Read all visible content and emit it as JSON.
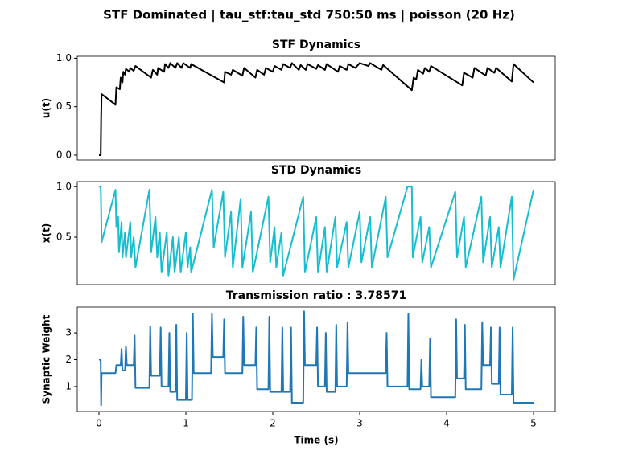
{
  "title": "STF Dominated | tau_stf:tau_std 750:50 ms | poisson (20 Hz)",
  "chart_data": [
    {
      "type": "line",
      "title": "STF Dynamics",
      "ylabel": "u(t)",
      "xlim": [
        -0.25,
        5.25
      ],
      "ylim": [
        -0.05,
        1.02
      ],
      "yticks": [
        {
          "value": 0,
          "label": "0.0"
        },
        0.5,
        {
          "value": 1,
          "label": "1.0"
        }
      ],
      "series": [
        {
          "color": "#000000",
          "x": [
            0,
            0.02,
            0.025,
            0.03,
            0.19,
            0.2,
            0.24,
            0.25,
            0.27,
            0.28,
            0.3,
            0.31,
            0.35,
            0.36,
            0.4,
            0.42,
            0.6,
            0.62,
            0.67,
            0.68,
            0.75,
            0.76,
            0.8,
            0.82,
            0.88,
            0.9,
            0.95,
            0.97,
            1.05,
            1.06,
            1.44,
            1.45,
            1.52,
            1.54,
            1.65,
            1.67,
            1.8,
            1.82,
            1.9,
            1.92,
            2.0,
            2.02,
            2.1,
            2.12,
            2.2,
            2.22,
            2.3,
            2.32,
            2.38,
            2.4,
            2.5,
            2.52,
            2.6,
            2.62,
            2.75,
            2.77,
            2.85,
            2.87,
            2.95,
            3.0,
            3.1,
            3.12,
            3.25,
            3.27,
            3.6,
            3.62,
            3.65,
            3.67,
            3.73,
            3.75,
            3.8,
            3.82,
            4.18,
            4.2,
            4.3,
            4.32,
            4.45,
            4.47,
            4.55,
            4.57,
            4.75,
            4.77,
            5.0
          ],
          "values": [
            0,
            0,
            0.38,
            0.63,
            0.52,
            0.7,
            0.68,
            0.8,
            0.75,
            0.86,
            0.83,
            0.89,
            0.86,
            0.9,
            0.87,
            0.92,
            0.8,
            0.88,
            0.83,
            0.9,
            0.86,
            0.94,
            0.9,
            0.95,
            0.9,
            0.95,
            0.9,
            0.95,
            0.9,
            0.94,
            0.75,
            0.86,
            0.83,
            0.88,
            0.82,
            0.9,
            0.8,
            0.88,
            0.83,
            0.9,
            0.86,
            0.92,
            0.88,
            0.94,
            0.9,
            0.95,
            0.88,
            0.93,
            0.88,
            0.94,
            0.89,
            0.93,
            0.88,
            0.94,
            0.86,
            0.92,
            0.88,
            0.94,
            0.9,
            0.95,
            0.92,
            0.95,
            0.88,
            0.93,
            0.67,
            0.8,
            0.78,
            0.88,
            0.84,
            0.9,
            0.86,
            0.92,
            0.72,
            0.85,
            0.8,
            0.9,
            0.82,
            0.9,
            0.85,
            0.9,
            0.76,
            0.94,
            0.75
          ]
        }
      ]
    },
    {
      "type": "line",
      "title": "STD Dynamics",
      "ylabel": "x(t)",
      "xlim": [
        -0.25,
        5.25
      ],
      "ylim": [
        0.03,
        1.05
      ],
      "yticks": [
        0.5,
        {
          "value": 1,
          "label": "1.0"
        }
      ],
      "series": [
        {
          "color": "#17becf",
          "x": [
            0,
            0.02,
            0.025,
            0.03,
            0.19,
            0.2,
            0.22,
            0.23,
            0.26,
            0.27,
            0.3,
            0.31,
            0.36,
            0.37,
            0.4,
            0.42,
            0.58,
            0.6,
            0.65,
            0.67,
            0.7,
            0.72,
            0.78,
            0.8,
            0.85,
            0.87,
            0.92,
            0.94,
            1.0,
            1.02,
            1.05,
            1.06,
            1.3,
            1.32,
            1.43,
            1.45,
            1.52,
            1.54,
            1.63,
            1.65,
            1.75,
            1.77,
            1.95,
            1.97,
            2.02,
            2.04,
            2.1,
            2.12,
            2.35,
            2.37,
            2.5,
            2.52,
            2.6,
            2.62,
            2.72,
            2.74,
            2.85,
            2.87,
            3.0,
            3.02,
            3.12,
            3.14,
            3.3,
            3.32,
            3.55,
            3.6,
            3.61,
            3.7,
            3.72,
            3.8,
            3.82,
            4.1,
            4.12,
            4.2,
            4.22,
            4.4,
            4.42,
            4.5,
            4.52,
            4.6,
            4.62,
            4.75,
            4.77,
            5.0
          ],
          "values": [
            1.0,
            1.0,
            0.78,
            0.45,
            0.97,
            0.6,
            0.7,
            0.35,
            0.65,
            0.3,
            0.55,
            0.3,
            0.65,
            0.3,
            0.5,
            0.2,
            0.97,
            0.35,
            0.7,
            0.3,
            0.55,
            0.15,
            0.55,
            0.12,
            0.5,
            0.15,
            0.5,
            0.15,
            0.55,
            0.2,
            0.4,
            0.15,
            0.97,
            0.4,
            0.95,
            0.3,
            0.75,
            0.2,
            0.88,
            0.2,
            0.75,
            0.15,
            0.9,
            0.25,
            0.6,
            0.2,
            0.55,
            0.12,
            0.9,
            0.15,
            0.7,
            0.15,
            0.6,
            0.15,
            0.7,
            0.2,
            0.65,
            0.2,
            0.75,
            0.25,
            0.7,
            0.2,
            0.9,
            0.3,
            1.0,
            1.0,
            0.3,
            0.7,
            0.25,
            0.6,
            0.2,
            0.95,
            0.3,
            0.7,
            0.2,
            0.9,
            0.25,
            0.7,
            0.2,
            0.6,
            0.2,
            0.9,
            0.08,
            0.97
          ]
        }
      ]
    },
    {
      "type": "line",
      "title": "Transmission ratio : 3.78571",
      "ylabel": "Synaptic Weight",
      "xlabel": "Time (s)",
      "xlim": [
        -0.25,
        5.25
      ],
      "ylim": [
        0.07,
        3.96
      ],
      "xticks": [
        0,
        1,
        2,
        3,
        4,
        5
      ],
      "yticks": [
        1,
        2,
        3
      ],
      "series": [
        {
          "color": "#1f77b4",
          "x": [
            0,
            0.02,
            0.025,
            0.03,
            0.19,
            0.2,
            0.25,
            0.26,
            0.27,
            0.3,
            0.31,
            0.32,
            0.4,
            0.41,
            0.42,
            0.58,
            0.59,
            0.6,
            0.7,
            0.71,
            0.72,
            0.8,
            0.81,
            0.82,
            0.88,
            0.89,
            0.9,
            1.0,
            1.01,
            1.02,
            1.07,
            1.08,
            1.09,
            1.29,
            1.3,
            1.31,
            1.43,
            1.44,
            1.45,
            1.65,
            1.66,
            1.67,
            1.8,
            1.81,
            1.82,
            1.95,
            1.96,
            1.97,
            2.1,
            2.11,
            2.12,
            2.2,
            2.21,
            2.22,
            2.35,
            2.36,
            2.37,
            2.5,
            2.51,
            2.52,
            2.6,
            2.61,
            2.62,
            2.72,
            2.73,
            2.74,
            2.85,
            2.86,
            2.87,
            3.3,
            3.31,
            3.32,
            3.55,
            3.56,
            3.57,
            3.7,
            3.71,
            3.72,
            3.8,
            3.81,
            3.82,
            4.1,
            4.11,
            4.12,
            4.2,
            4.21,
            4.22,
            4.4,
            4.41,
            4.42,
            4.5,
            4.51,
            4.52,
            4.6,
            4.61,
            4.62,
            4.75,
            4.76,
            4.77,
            5.0
          ],
          "values": [
            2,
            2,
            0.3,
            1.5,
            1.5,
            1.8,
            1.8,
            2.4,
            1.6,
            1.6,
            2.5,
            1.8,
            1.8,
            2.9,
            0.95,
            0.95,
            3.25,
            1.4,
            1.4,
            3.2,
            1.0,
            1.0,
            3.0,
            0.8,
            0.8,
            3.3,
            0.5,
            0.5,
            3.0,
            0.5,
            0.5,
            3.7,
            1.5,
            1.5,
            3.7,
            2.1,
            2.1,
            3.5,
            1.5,
            1.5,
            3.6,
            1.8,
            1.8,
            3.2,
            0.9,
            0.9,
            3.6,
            0.8,
            0.8,
            3.2,
            0.8,
            0.8,
            3.2,
            0.4,
            0.4,
            3.8,
            1.8,
            1.8,
            3.2,
            1.0,
            1.0,
            3.0,
            0.8,
            0.8,
            3.3,
            1.0,
            1.0,
            3.4,
            1.5,
            1.5,
            3.0,
            1.0,
            1.0,
            3.7,
            0.9,
            0.9,
            2.0,
            1.0,
            1.0,
            2.8,
            0.6,
            0.6,
            3.5,
            1.3,
            1.3,
            3.3,
            0.9,
            0.9,
            3.4,
            1.8,
            1.8,
            3.2,
            1.1,
            1.1,
            3.2,
            0.7,
            0.7,
            3.2,
            0.4,
            0.4
          ]
        }
      ]
    }
  ]
}
